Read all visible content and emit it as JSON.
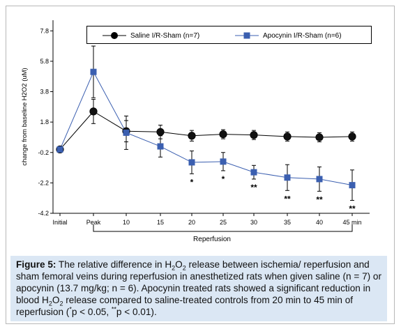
{
  "chart_data": {
    "type": "line",
    "title": "",
    "xlabel": "Reperfusion",
    "ylabel": "change from baseline H2O2 (uM)",
    "ylim": [
      -4.2,
      8.5
    ],
    "yticks": [
      "7.8",
      "5.8",
      "3.8",
      "1.8",
      "-0.2",
      "-2.2",
      "-4.2"
    ],
    "ytick_values": [
      7.8,
      5.8,
      3.8,
      1.8,
      -0.2,
      -2.2,
      -4.2
    ],
    "categories": [
      "Initial",
      "Peak",
      "10",
      "15",
      "20",
      "25",
      "30",
      "35",
      "40",
      "45 min"
    ],
    "legend_position": "top",
    "grid": false,
    "series": [
      {
        "name": "Saline I/R-Sham (n=7)",
        "color": "#000000",
        "values": [
          0.0,
          2.5,
          1.2,
          1.15,
          0.9,
          1.0,
          0.95,
          0.85,
          0.8,
          0.85
        ],
        "errors": [
          0.2,
          0.8,
          0.7,
          0.45,
          0.35,
          0.3,
          0.3,
          0.3,
          0.3,
          0.3
        ]
      },
      {
        "name": "Apocynin I/R-Sham (n=6)",
        "color": "#3b5fb0",
        "values": [
          0.0,
          5.1,
          1.1,
          0.2,
          -0.85,
          -0.8,
          -1.5,
          -1.85,
          -1.95,
          -2.35
        ],
        "errors": [
          0.2,
          1.7,
          1.1,
          0.7,
          0.75,
          0.6,
          0.45,
          0.85,
          0.8,
          1.0
        ]
      }
    ],
    "annotations": [
      {
        "category": "20",
        "text": "*"
      },
      {
        "category": "25",
        "text": "*"
      },
      {
        "category": "30",
        "text": "**"
      },
      {
        "category": "35",
        "text": "**"
      },
      {
        "category": "40",
        "text": "**"
      },
      {
        "category": "45 min",
        "text": "**"
      }
    ]
  },
  "caption": {
    "label": "Figure 5:",
    "text_1": " The relative difference in H",
    "sub_1": "2",
    "text_2": "O",
    "sub_2": "2",
    "text_3": " release between ischemia/ reperfusion and sham femoral veins during reperfusion in anesthetized rats when given saline (n = 7) or apocynin (13.7 mg/kg; n = 6). Apocynin treated rats showed a significant reduction in blood H",
    "sub_3": "2",
    "text_4": "O",
    "sub_4": "2",
    "text_5": " release compared to saline-treated controls from 20 min to 45 min of reperfusion (",
    "sup_1": "*",
    "text_6": "p < 0.05, ",
    "sup_2": "**",
    "text_7": "p < 0.01)."
  }
}
